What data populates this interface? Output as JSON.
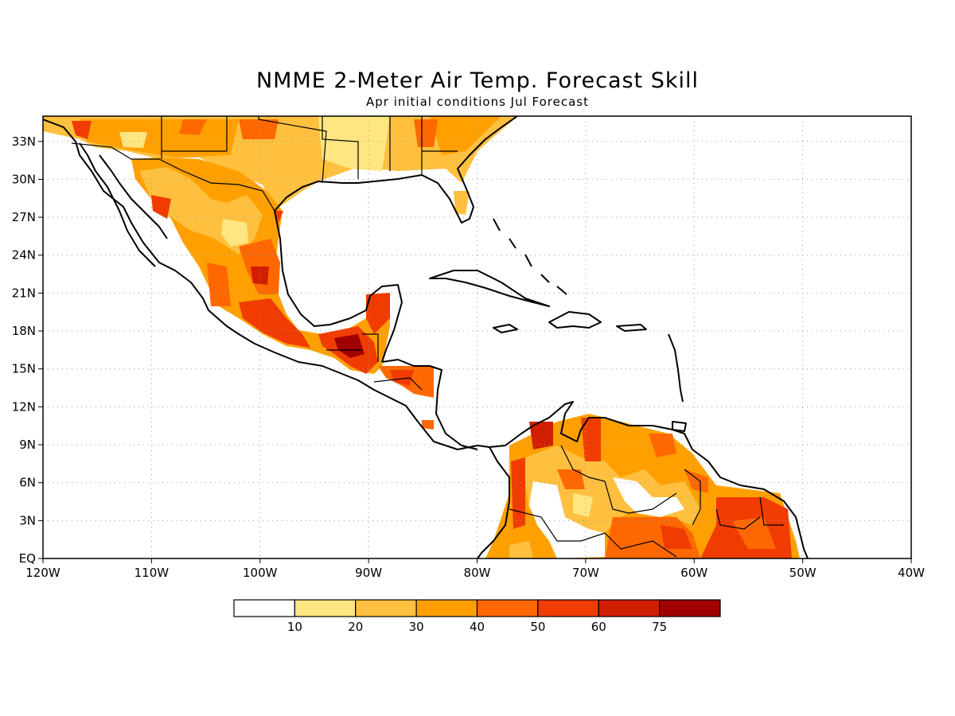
{
  "title": "NMME 2-Meter Air Temp. Forecast Skill",
  "subtitle": "Apr initial conditions  Jul Forecast",
  "map": {
    "lon_range": [
      -120,
      -40
    ],
    "lat_range": [
      0,
      35
    ],
    "lon_ticks": [
      {
        "value": -120,
        "label": "120W"
      },
      {
        "value": -110,
        "label": "110W"
      },
      {
        "value": -100,
        "label": "100W"
      },
      {
        "value": -90,
        "label": "90W"
      },
      {
        "value": -80,
        "label": "80W"
      },
      {
        "value": -70,
        "label": "70W"
      },
      {
        "value": -60,
        "label": "60W"
      },
      {
        "value": -50,
        "label": "50W"
      },
      {
        "value": -40,
        "label": "40W"
      }
    ],
    "lat_ticks": [
      {
        "value": 0,
        "label": "EQ"
      },
      {
        "value": 3,
        "label": "3N"
      },
      {
        "value": 6,
        "label": "6N"
      },
      {
        "value": 9,
        "label": "9N"
      },
      {
        "value": 12,
        "label": "12N"
      },
      {
        "value": 15,
        "label": "15N"
      },
      {
        "value": 18,
        "label": "18N"
      },
      {
        "value": 21,
        "label": "21N"
      },
      {
        "value": 24,
        "label": "24N"
      },
      {
        "value": 27,
        "label": "27N"
      },
      {
        "value": 30,
        "label": "30N"
      },
      {
        "value": 33,
        "label": "33N"
      }
    ],
    "grid": true,
    "grid_style": "dotted"
  },
  "colorbar": {
    "thresholds": [
      "10",
      "20",
      "30",
      "40",
      "50",
      "60",
      "75"
    ],
    "colors": [
      "#ffffff",
      "#ffe680",
      "#ffc040",
      "#ffa000",
      "#ff6800",
      "#f03c00",
      "#d21e00",
      "#a00000"
    ]
  }
}
